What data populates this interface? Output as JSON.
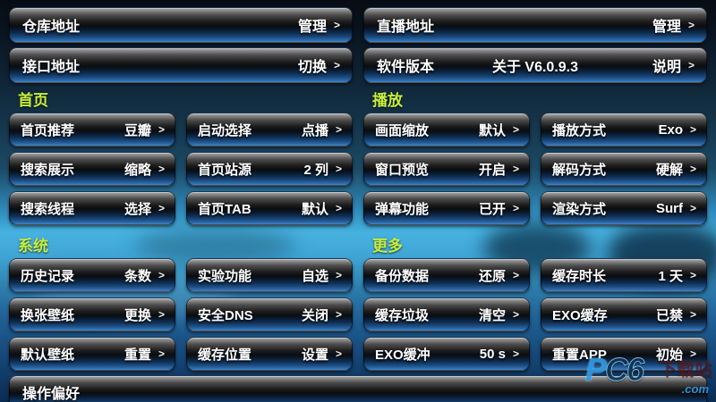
{
  "icons": {
    "chevron": ">"
  },
  "colors": {
    "section_title": "#c8ef3d",
    "button_bottom_glow": "#4286c9",
    "background_sky": "#46b2e0",
    "text": "#ffffff",
    "watermark_blue": "#2e9be6"
  },
  "top": {
    "rows": [
      {
        "label": "仓库地址",
        "value": "管理"
      },
      {
        "label": "直播地址",
        "value": "管理"
      },
      {
        "label": "接口地址",
        "value": "切换"
      },
      {
        "label": "软件版本",
        "center": "关于  V6.0.9.3",
        "value": "说明"
      }
    ]
  },
  "sections": [
    {
      "title": "首页",
      "items": [
        {
          "label": "首页推荐",
          "value": "豆瓣"
        },
        {
          "label": "启动选择",
          "value": "点播"
        },
        {
          "label": "搜索展示",
          "value": "缩略"
        },
        {
          "label": "首页站源",
          "value": "2 列"
        },
        {
          "label": "搜索线程",
          "value": "选择"
        },
        {
          "label": "首页TAB",
          "value": "默认"
        }
      ]
    },
    {
      "title": "播放",
      "items": [
        {
          "label": "画面缩放",
          "value": "默认"
        },
        {
          "label": "播放方式",
          "value": "Exo"
        },
        {
          "label": "窗口预览",
          "value": "开启"
        },
        {
          "label": "解码方式",
          "value": "硬解"
        },
        {
          "label": "弹幕功能",
          "value": "已开"
        },
        {
          "label": "渲染方式",
          "value": "Surf"
        }
      ]
    },
    {
      "title": "系统",
      "items": [
        {
          "label": "历史记录",
          "value": "条数"
        },
        {
          "label": "实验功能",
          "value": "自选"
        },
        {
          "label": "换张壁纸",
          "value": "更换"
        },
        {
          "label": "安全DNS",
          "value": "关闭"
        },
        {
          "label": "默认壁纸",
          "value": "重置"
        },
        {
          "label": "缓存位置",
          "value": "设置"
        }
      ]
    },
    {
      "title": "更多",
      "items": [
        {
          "label": "备份数据",
          "value": "还原"
        },
        {
          "label": "缓存时长",
          "value": "1 天"
        },
        {
          "label": "缓存垃圾",
          "value": "清空"
        },
        {
          "label": "EXO缓存",
          "value": "已禁"
        },
        {
          "label": "EXO缓冲",
          "value": "50 s"
        },
        {
          "label": "重置APP",
          "value": "初始"
        }
      ]
    }
  ],
  "bottom": {
    "label": "操作偏好"
  },
  "watermark": {
    "logo_p": "P",
    "logo_rest": "C6",
    "suffix": ".com",
    "site": "下载站"
  }
}
